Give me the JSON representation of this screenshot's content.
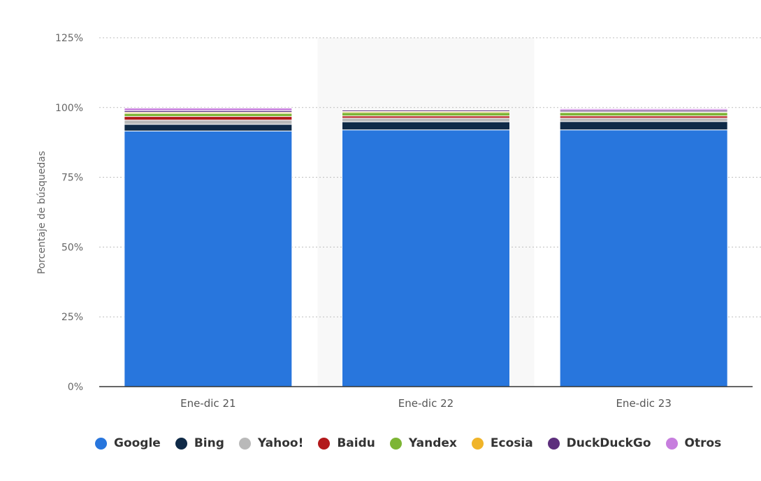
{
  "chart_data": {
    "type": "bar",
    "stacked": true,
    "title": "",
    "xlabel": "",
    "ylabel": "Porcentaje de búsquedas",
    "ylim": [
      0,
      125
    ],
    "y_ticks": [
      "0%",
      "25%",
      "50%",
      "75%",
      "100%",
      "125%"
    ],
    "y_tick_values": [
      0,
      25,
      50,
      75,
      100,
      125
    ],
    "grid": true,
    "legend_position": "bottom",
    "highlighted_category": "Ene-dic 22",
    "categories": [
      "Ene-dic 21",
      "Ene-dic 22",
      "Ene-dic 23"
    ],
    "series": [
      {
        "name": "Google",
        "color": "#2876dd",
        "values": [
          91.6,
          92.0,
          92.0
        ]
      },
      {
        "name": "Bing",
        "color": "#0f2a47",
        "values": [
          2.4,
          2.9,
          3.0
        ]
      },
      {
        "name": "Yahoo!",
        "color": "#b9b9b9",
        "values": [
          1.5,
          1.3,
          1.2
        ]
      },
      {
        "name": "Baidu",
        "color": "#b3191b",
        "values": [
          1.3,
          0.8,
          0.8
        ]
      },
      {
        "name": "Yandex",
        "color": "#7db534",
        "values": [
          1.1,
          1.2,
          1.2
        ]
      },
      {
        "name": "Ecosia",
        "color": "#f0b429",
        "values": [
          0.4,
          0.4,
          0.3
        ]
      },
      {
        "name": "DuckDuckGo",
        "color": "#5d2f7d",
        "values": [
          0.6,
          0.5,
          0.6
        ]
      },
      {
        "name": "Otros",
        "color": "#c77ede",
        "values": [
          0.9,
          0.0,
          0.5
        ]
      }
    ]
  }
}
